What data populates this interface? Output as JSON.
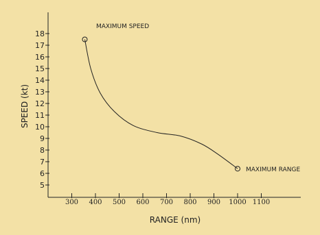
{
  "chart_data": {
    "type": "line",
    "xlabel": "RANGE (nm)",
    "ylabel": "SPEED (kt)",
    "xlim": [
      200,
      1280
    ],
    "ylim": [
      4,
      20
    ],
    "xticks": [
      300,
      400,
      500,
      600,
      700,
      800,
      900,
      1000,
      1100
    ],
    "yticks": [
      5,
      6,
      7,
      8,
      9,
      10,
      11,
      12,
      13,
      14,
      15,
      16,
      17,
      18
    ],
    "grid": false,
    "series": [
      {
        "x": [
          355,
          380,
          420,
          480,
          560,
          660,
          760,
          850,
          920,
          1000
        ],
        "y": [
          17.5,
          15.0,
          12.9,
          11.3,
          10.1,
          9.5,
          9.2,
          8.5,
          7.6,
          6.4
        ]
      }
    ],
    "annotations": [
      {
        "text": "MAXIMUM SPEED",
        "x": 355,
        "y": 17.5
      },
      {
        "text": "MAXIMUM RANGE",
        "x": 1000,
        "y": 6.4
      }
    ]
  },
  "colors": {
    "background": "#f3e1a6",
    "ink": "#222222"
  }
}
